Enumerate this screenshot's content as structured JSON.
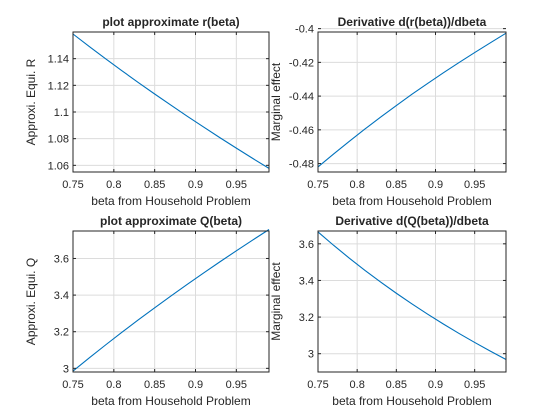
{
  "figure": {
    "background": "#ffffff"
  },
  "chart_data": [
    {
      "type": "line",
      "title": "plot approximate r(beta)",
      "xlabel": "beta from Household Problem",
      "ylabel": "Approxi. Equi. R",
      "xlim": [
        0.75,
        0.99
      ],
      "ylim": [
        1.055,
        1.16
      ],
      "xticks": [
        0.75,
        0.8,
        0.85,
        0.9,
        0.95
      ],
      "xtick_labels": [
        "0.75",
        "0.8",
        "0.85",
        "0.9",
        "0.95"
      ],
      "yticks": [
        1.06,
        1.08,
        1.1,
        1.12,
        1.14
      ],
      "ytick_labels": [
        "1.06",
        "1.08",
        "1.1",
        "1.12",
        "1.14"
      ],
      "grid": true,
      "color": "#0072bd",
      "x": [
        0.75,
        0.77,
        0.79,
        0.81,
        0.83,
        0.85,
        0.87,
        0.89,
        0.91,
        0.93,
        0.95,
        0.97,
        0.99
      ],
      "y": [
        1.1585,
        1.1491,
        1.1399,
        1.1309,
        1.1221,
        1.1135,
        1.1051,
        1.0968,
        1.0887,
        1.0807,
        1.0729,
        1.0652,
        1.0577
      ]
    },
    {
      "type": "line",
      "title": "Derivative d(r(beta))/dbeta",
      "xlabel": "beta from Household Problem",
      "ylabel": "Marginal effect",
      "xlim": [
        0.75,
        0.99
      ],
      "ylim": [
        -0.485,
        -0.402
      ],
      "xticks": [
        0.75,
        0.8,
        0.85,
        0.9,
        0.95
      ],
      "xtick_labels": [
        "0.75",
        "0.8",
        "0.85",
        "0.9",
        "0.95"
      ],
      "yticks": [
        -0.48,
        -0.46,
        -0.44,
        -0.42,
        -0.4
      ],
      "ytick_labels": [
        "-0.48",
        "-0.46",
        "-0.44",
        "-0.42",
        "-0.4"
      ],
      "grid": true,
      "color": "#0072bd",
      "x": [
        0.75,
        0.77,
        0.79,
        0.81,
        0.83,
        0.85,
        0.87,
        0.89,
        0.91,
        0.93,
        0.95,
        0.97,
        0.99
      ],
      "y": [
        -0.482,
        -0.4743,
        -0.4668,
        -0.4595,
        -0.4524,
        -0.4456,
        -0.4389,
        -0.4325,
        -0.4262,
        -0.4201,
        -0.4142,
        -0.4084,
        -0.4027
      ]
    },
    {
      "type": "line",
      "title": "plot approximate Q(beta)",
      "xlabel": "beta from Household Problem",
      "ylabel": "Approxi. Equi. Q",
      "xlim": [
        0.75,
        0.99
      ],
      "ylim": [
        2.98,
        3.75
      ],
      "xticks": [
        0.75,
        0.8,
        0.85,
        0.9,
        0.95
      ],
      "xtick_labels": [
        "0.75",
        "0.8",
        "0.85",
        "0.9",
        "0.95"
      ],
      "yticks": [
        3.0,
        3.2,
        3.4,
        3.6
      ],
      "ytick_labels": [
        "3",
        "3.2",
        "3.4",
        "3.6"
      ],
      "grid": true,
      "color": "#0072bd",
      "x": [
        0.75,
        0.77,
        0.79,
        0.81,
        0.83,
        0.85,
        0.87,
        0.89,
        0.91,
        0.93,
        0.95,
        0.97,
        0.99
      ],
      "y": [
        2.985,
        3.0574,
        3.1281,
        3.1972,
        3.2647,
        3.3308,
        3.3955,
        3.4589,
        3.521,
        3.582,
        3.6418,
        3.7005,
        3.7582
      ]
    },
    {
      "type": "line",
      "title": "Derivative d(Q(beta))/dbeta",
      "xlabel": "beta from Household Problem",
      "ylabel": "Marginal effect",
      "xlim": [
        0.75,
        0.99
      ],
      "ylim": [
        2.9,
        3.67
      ],
      "xticks": [
        0.75,
        0.8,
        0.85,
        0.9,
        0.95
      ],
      "xtick_labels": [
        "0.75",
        "0.8",
        "0.85",
        "0.9",
        "0.95"
      ],
      "yticks": [
        3.0,
        3.2,
        3.4,
        3.6
      ],
      "ytick_labels": [
        "3",
        "3.2",
        "3.4",
        "3.6"
      ],
      "grid": true,
      "color": "#0072bd",
      "x": [
        0.75,
        0.77,
        0.79,
        0.81,
        0.83,
        0.85,
        0.87,
        0.89,
        0.91,
        0.93,
        0.95,
        0.97,
        0.99
      ],
      "y": [
        3.665,
        3.5916,
        3.5216,
        3.4548,
        3.391,
        3.33,
        3.2716,
        3.2157,
        3.1621,
        3.1107,
        3.0613,
        3.0138,
        2.9682
      ]
    }
  ]
}
